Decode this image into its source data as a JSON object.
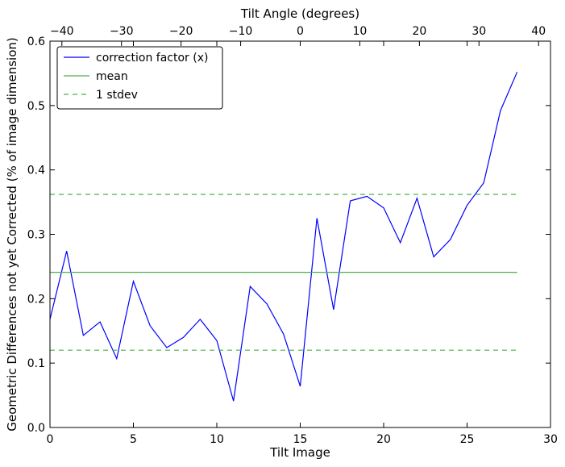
{
  "chart_data": {
    "type": "line",
    "xlabel": "Tilt Image",
    "ylabel": "Geometric Differences not yet Corrected (% of image dimension)",
    "top_axis_label": "Tilt Angle (degrees)",
    "xlim": [
      0,
      30
    ],
    "ylim": [
      0,
      0.6
    ],
    "x_ticks": [
      0,
      5,
      10,
      15,
      20,
      25,
      30
    ],
    "x_tick_labels": [
      "0",
      "5",
      "10",
      "15",
      "20",
      "25",
      "30"
    ],
    "y_ticks": [
      0.0,
      0.1,
      0.2,
      0.3,
      0.4,
      0.5,
      0.6
    ],
    "y_tick_labels": [
      "0.0",
      "0.1",
      "0.2",
      "0.3",
      "0.4",
      "0.5",
      "0.6"
    ],
    "top_axis_lim": [
      -42,
      42
    ],
    "top_ticks": [
      -40,
      -30,
      -20,
      -10,
      0,
      10,
      20,
      30,
      40
    ],
    "top_tick_labels": [
      "−40",
      "−30",
      "−20",
      "−10",
      "0",
      "10",
      "20",
      "30",
      "40"
    ],
    "grid": false,
    "legend_position": "top-left",
    "series": [
      {
        "name": "correction factor (x)",
        "style": "solid",
        "color": "#0000ff",
        "x": [
          0,
          1,
          2,
          3,
          4,
          5,
          6,
          7,
          8,
          9,
          10,
          11,
          12,
          13,
          14,
          15,
          16,
          17,
          18,
          19,
          20,
          21,
          22,
          23,
          24,
          25,
          26,
          27,
          28
        ],
        "y": [
          0.168,
          0.274,
          0.143,
          0.164,
          0.107,
          0.227,
          0.158,
          0.124,
          0.14,
          0.168,
          0.135,
          0.041,
          0.219,
          0.192,
          0.145,
          0.064,
          0.325,
          0.183,
          0.352,
          0.359,
          0.341,
          0.287,
          0.356,
          0.265,
          0.292,
          0.345,
          0.38,
          0.492,
          0.552
        ]
      },
      {
        "name": "mean",
        "style": "solid",
        "color": "#4daf4a",
        "x": [
          0,
          28
        ],
        "y": [
          0.241,
          0.241
        ]
      },
      {
        "name": "1 stdev",
        "style": "dashed",
        "color": "#4daf4a",
        "x": [
          0,
          28
        ],
        "y": [
          0.362,
          0.362
        ]
      },
      {
        "name": "",
        "style": "dashed",
        "color": "#4daf4a",
        "x": [
          0,
          28
        ],
        "y": [
          0.12,
          0.12
        ]
      }
    ]
  }
}
